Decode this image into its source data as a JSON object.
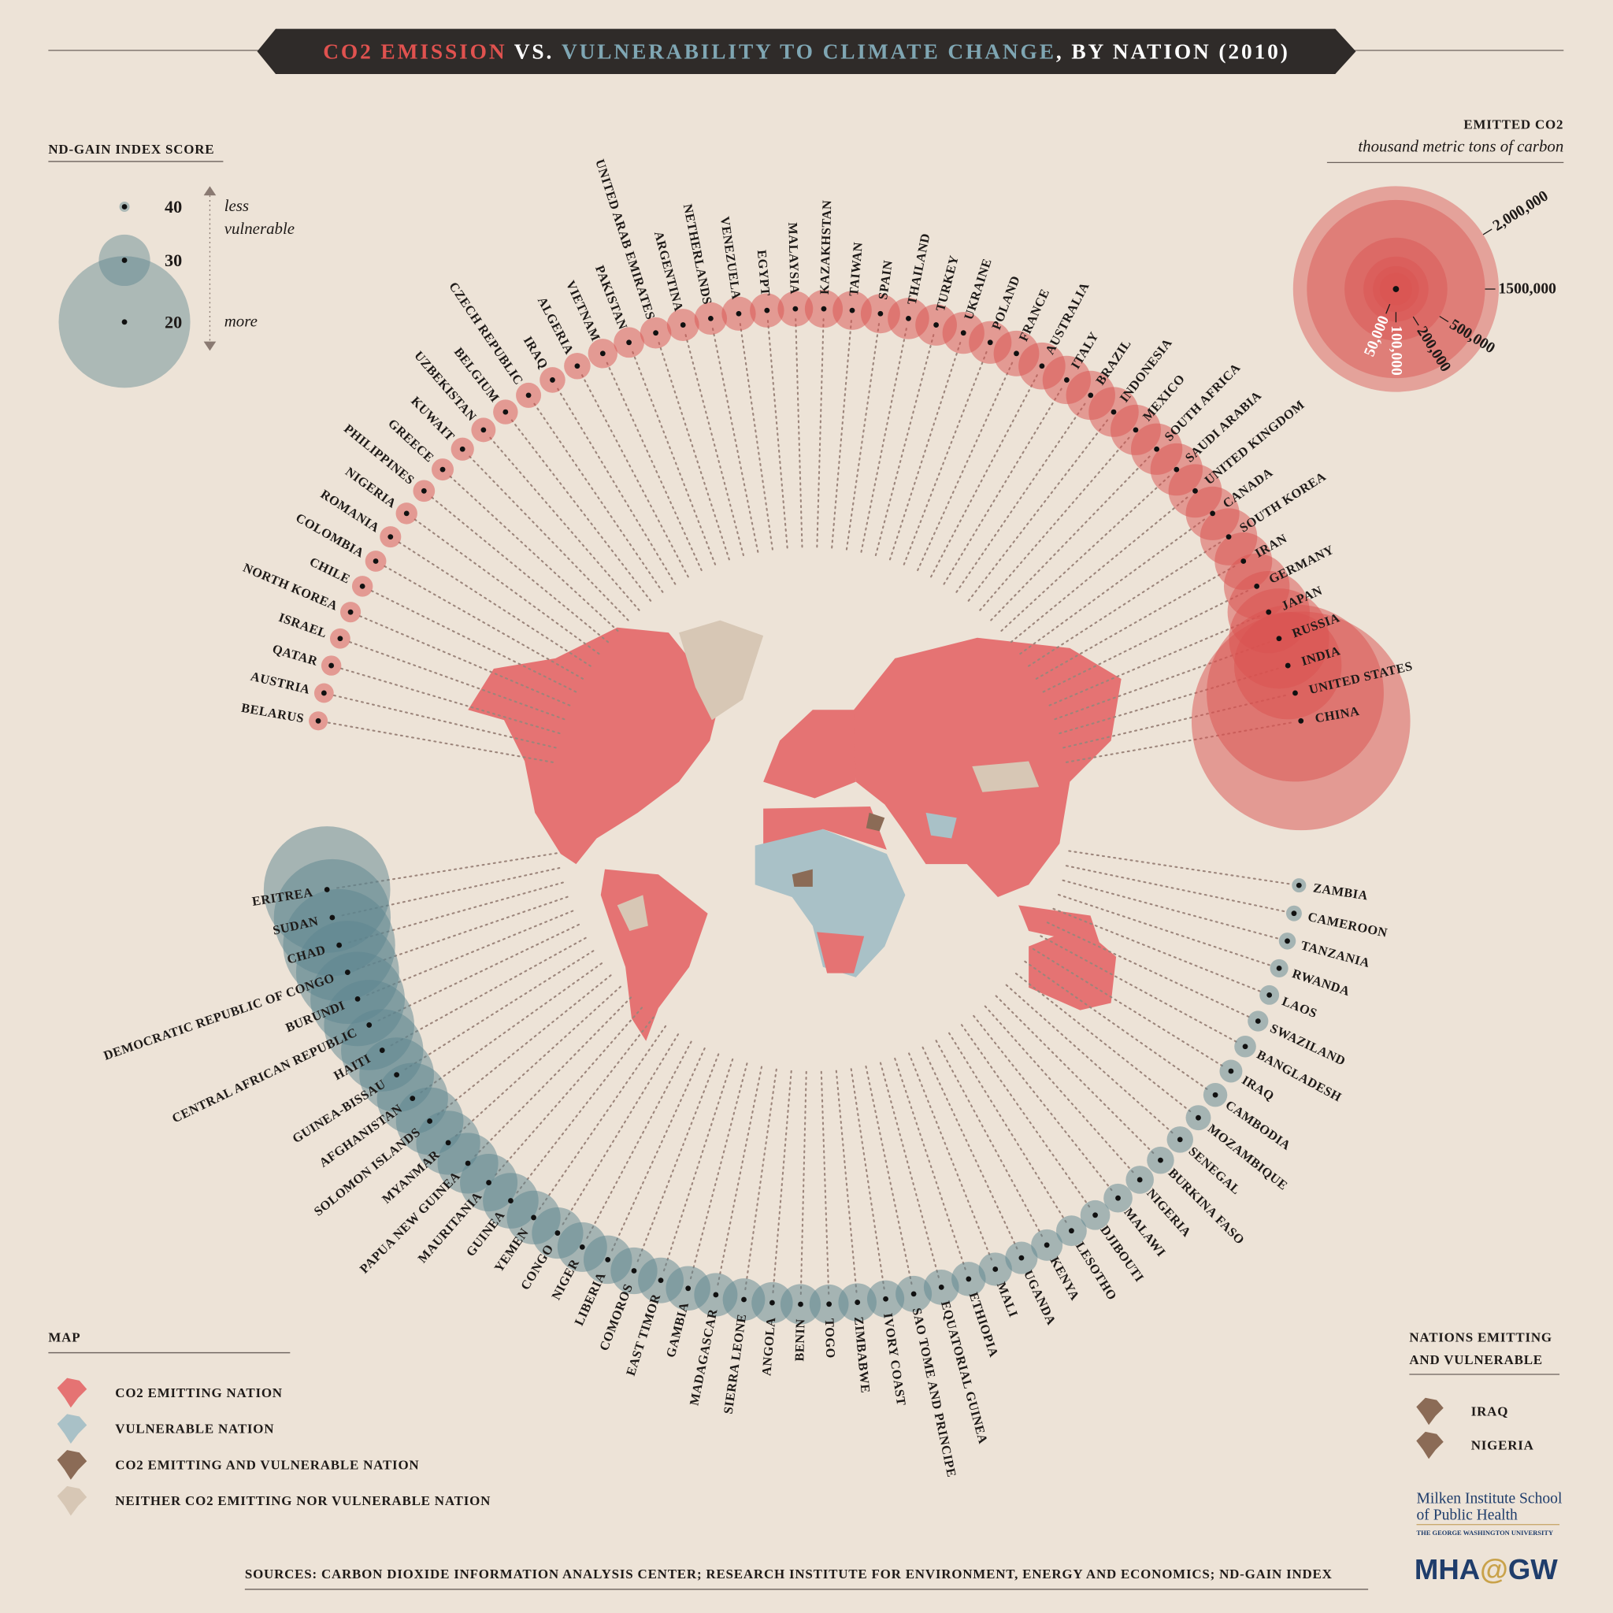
{
  "title": {
    "emission": "CO2 EMISSION",
    "vs": " VS. ",
    "vulnerability": "VULNERABILITY TO CLIMATE CHANGE",
    "suffix": ", BY NATION (2010)"
  },
  "chart_data": [
    {
      "type": "bubble",
      "color": "#d9524f",
      "categories": [
        "BELARUS",
        "AUSTRIA",
        "QATAR",
        "ISRAEL",
        "NORTH KOREA",
        "CHILE",
        "COLOMBIA",
        "ROMANIA",
        "NIGERIA",
        "PHILIPPINES",
        "GREECE",
        "KUWAIT",
        "UZBEKISTAN",
        "BELGIUM",
        "CZECH REPUBLIC",
        "IRAQ",
        "ALGERIA",
        "VIETNAM",
        "PAKISTAN",
        "UNITED ARAB EMIRATES",
        "ARGENTINA",
        "NETHERLANDS",
        "VENEZUELA",
        "EGYPT",
        "MALAYSIA",
        "KAZAKHSTAN",
        "TAIWAN",
        "SPAIN",
        "THAILAND",
        "TURKEY",
        "UKRAINE",
        "POLAND",
        "FRANCE",
        "AUSTRALIA",
        "ITALY",
        "BRAZIL",
        "INDONESIA",
        "MEXICO",
        "SOUTH AFRICA",
        "SAUDI ARABIA",
        "UNITED KINGDOM",
        "CANADA",
        "SOUTH KOREA",
        "IRAN",
        "GERMANY",
        "JAPAN",
        "RUSSIA",
        "INDIA",
        "UNITED STATES",
        "CHINA"
      ],
      "values": [
        17000,
        18000,
        19000,
        19500,
        20000,
        20500,
        21000,
        21500,
        22000,
        22500,
        23000,
        25000,
        28000,
        29000,
        30000,
        31000,
        33000,
        41000,
        44000,
        46000,
        49000,
        50000,
        55000,
        55500,
        59000,
        68000,
        72000,
        73000,
        81000,
        81500,
        83000,
        86000,
        98000,
        104000,
        110000,
        114000,
        118000,
        120000,
        125000,
        129000,
        135000,
        136000,
        154000,
        156000,
        204000,
        319000,
        474000,
        545000,
        1482000,
        2260000
      ],
      "legend": {
        "title": "EMITTED CO2",
        "subtitle": "thousand metric tons of carbon",
        "ticks": [
          {
            "value": 50000,
            "label": "50,000"
          },
          {
            "value": 100000,
            "label": "100,000"
          },
          {
            "value": 200000,
            "label": "200,000"
          },
          {
            "value": 500000,
            "label": "500,000"
          },
          {
            "value": 1500000,
            "label": "1500,000"
          },
          {
            "value": 2000000,
            "label": "2,000,000"
          }
        ]
      }
    },
    {
      "type": "bubble",
      "color": "#5e858f",
      "categories": [
        "ERITREA",
        "SUDAN",
        "CHAD",
        "DEMOCRATIC REPUBLIC OF CONGO",
        "BURUNDI",
        "CENTRAL AFRICAN REPUBLIC",
        "HAITI",
        "GUINEA-BISSAU",
        "AFGHANISTAN",
        "SOLOMON ISLANDS",
        "MYANMAR",
        "PAPUA NEW GUINEA",
        "MAURITANIA",
        "GUINEA",
        "YEMEN",
        "CONGO",
        "NIGER",
        "LIBERIA",
        "COMOROS",
        "EAST TIMOR",
        "GAMBIA",
        "MADAGASCAR",
        "SIERRA LEONE",
        "ANGOLA",
        "BENIN",
        "TOGO",
        "ZIMBABWE",
        "IVORY COAST",
        "SAO TOME AND PRINCIPE",
        "EQUATORIAL GUINEA",
        "ETHIOPIA",
        "MALI",
        "UGANDA",
        "KENYA",
        "LESOTHO",
        "DJIBOUTI",
        "MALAWI",
        "NIGERIA",
        "BURKINA FASO",
        "SENEGAL",
        "MOZAMBIQUE",
        "CAMBODIA",
        "IRAQ",
        "BANGLADESH",
        "SWAZILAND",
        "LAOS",
        "RWANDA",
        "TANZANIA",
        "CAMEROON",
        "ZAMBIA"
      ],
      "values": [
        20.5,
        21.5,
        22,
        23,
        24,
        24.5,
        25.5,
        26.5,
        27,
        27.5,
        28,
        28.5,
        29,
        29.3,
        29.6,
        30,
        30.3,
        30.5,
        30.8,
        31,
        31.2,
        31.4,
        31.6,
        31.8,
        32,
        32.2,
        32.4,
        32.6,
        32.8,
        33,
        33.2,
        33.4,
        33.6,
        33.8,
        34,
        34.2,
        34.4,
        34.6,
        34.8,
        35,
        35.3,
        35.6,
        35.9,
        36.2,
        36.5,
        36.8,
        37.2,
        37.6,
        38,
        38.5
      ],
      "legend": {
        "title": "ND-GAIN INDEX SCORE",
        "ticks": [
          40,
          30,
          20
        ],
        "upper_label": [
          "less",
          "vulnerable"
        ],
        "lower_label": "more"
      }
    }
  ],
  "map_legend": {
    "title": "MAP",
    "items": [
      {
        "label": "CO2 EMITTING NATION",
        "color": "#e57373"
      },
      {
        "label": "VULNERABLE NATION",
        "color": "#a9c1c7"
      },
      {
        "label": "CO2 EMITTING AND VULNERABLE NATION",
        "color": "#8b6b56"
      },
      {
        "label": "NEITHER CO2 EMITTING NOR VULNERABLE NATION",
        "color": "#d7c7b5"
      }
    ]
  },
  "both_legend": {
    "title": [
      "NATIONS EMITTING",
      "AND VULNERABLE"
    ],
    "items": [
      "IRAQ",
      "NIGERIA"
    ]
  },
  "sources": "SOURCES: CARBON DIOXIDE INFORMATION ANALYSIS CENTER; RESEARCH INSTITUTE FOR ENVIRONMENT, ENERGY AND ECONOMICS; ND-GAIN INDEX",
  "logo": {
    "school": [
      "Milken Institute School",
      "of Public Health"
    ],
    "university": "THE GEORGE WASHINGTON UNIVERSITY",
    "brand": [
      "MHA",
      "@",
      "GW"
    ]
  }
}
